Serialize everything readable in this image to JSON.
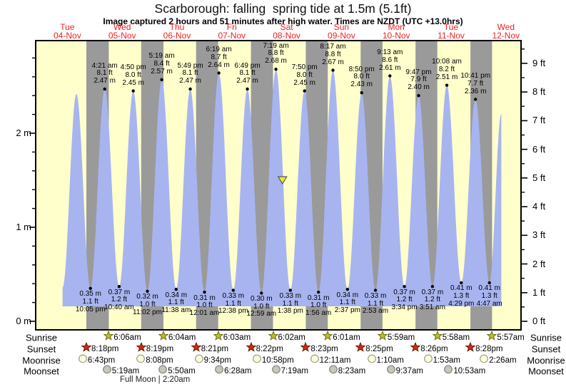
{
  "title": "Scarborough: falling  spring tide at 1.5m (5.1ft)",
  "subtitle": "Image captured 2 hours and 51 minutes after high water. Times are NZDT (UTC +13.0hrs)",
  "days": [
    {
      "dow": "Tue",
      "date": "04-Nov"
    },
    {
      "dow": "Wed",
      "date": "05-Nov"
    },
    {
      "dow": "Thu",
      "date": "06-Nov"
    },
    {
      "dow": "Fri",
      "date": "07-Nov"
    },
    {
      "dow": "Sat",
      "date": "08-Nov"
    },
    {
      "dow": "Sun",
      "date": "09-Nov"
    },
    {
      "dow": "Mon",
      "date": "10-Nov"
    },
    {
      "dow": "Tue",
      "date": "11-Nov"
    },
    {
      "dow": "Wed",
      "date": "12-Nov"
    }
  ],
  "axes": {
    "left_labels": [
      "0 m",
      "1 m",
      "2 m"
    ],
    "right_labels": [
      "0 ft",
      "1 ft",
      "2 ft",
      "3 ft",
      "4 ft",
      "5 ft",
      "6 ft",
      "7 ft",
      "8 ft",
      "9 ft"
    ]
  },
  "chart_data": {
    "type": "area",
    "title": "Scarborough: falling  spring tide at 1.5m (5.1ft)",
    "x_unit": "hours since Tue 04-Nov 00:00 NZDT",
    "y_unit_primary": "m",
    "y_unit_secondary": "ft",
    "ylim_m": [
      0,
      2.98
    ],
    "grid": false,
    "tide_events": [
      {
        "t": 9.9,
        "m": 0.36,
        "kind": "low",
        "annotated": false
      },
      {
        "t": 15.95,
        "m": 2.42,
        "kind": "high",
        "annotated": false
      },
      {
        "t": 22.083,
        "m": 0.35,
        "kind": "low",
        "annotated": true,
        "time_label": "10:05 pm",
        "ft_label": "1.1 ft",
        "m_label": "0.35 m"
      },
      {
        "t": 28.35,
        "m": 2.47,
        "kind": "high",
        "annotated": true,
        "time_label": "4:21 am",
        "ft_label": "8.1 ft",
        "m_label": "2.47 m"
      },
      {
        "t": 34.667,
        "m": 0.37,
        "kind": "low",
        "annotated": true,
        "time_label": "10:40 am",
        "ft_label": "1.2 ft",
        "m_label": "0.37 m"
      },
      {
        "t": 40.833,
        "m": 2.45,
        "kind": "high",
        "annotated": true,
        "time_label": "4:50 pm",
        "ft_label": "8.0 ft",
        "m_label": "2.45 m"
      },
      {
        "t": 47.033,
        "m": 0.32,
        "kind": "low",
        "annotated": true,
        "time_label": "11:02 pm",
        "ft_label": "1.0 ft",
        "m_label": "0.32 m"
      },
      {
        "t": 53.317,
        "m": 2.57,
        "kind": "high",
        "annotated": true,
        "time_label": "5:19 am",
        "ft_label": "8.4 ft",
        "m_label": "2.57 m"
      },
      {
        "t": 59.633,
        "m": 0.34,
        "kind": "low",
        "annotated": true,
        "time_label": "11:38 am",
        "ft_label": "1.1 ft",
        "m_label": "0.34 m"
      },
      {
        "t": 65.817,
        "m": 2.47,
        "kind": "high",
        "annotated": true,
        "time_label": "5:49 pm",
        "ft_label": "8.1 ft",
        "m_label": "2.47 m"
      },
      {
        "t": 72.017,
        "m": 0.31,
        "kind": "low",
        "annotated": true,
        "time_label": "12:01 am",
        "ft_label": "1.0 ft",
        "m_label": "0.31 m"
      },
      {
        "t": 78.317,
        "m": 2.64,
        "kind": "high",
        "annotated": true,
        "time_label": "6:19 am",
        "ft_label": "8.7 ft",
        "m_label": "2.64 m"
      },
      {
        "t": 84.633,
        "m": 0.33,
        "kind": "low",
        "annotated": true,
        "time_label": "12:38 pm",
        "ft_label": "1.1 ft",
        "m_label": "0.33 m"
      },
      {
        "t": 90.817,
        "m": 2.47,
        "kind": "high",
        "annotated": true,
        "time_label": "6:49 pm",
        "ft_label": "8.1 ft",
        "m_label": "2.47 m"
      },
      {
        "t": 96.983,
        "m": 0.3,
        "kind": "low",
        "annotated": true,
        "time_label": "12:59 am",
        "ft_label": "1.0 ft",
        "m_label": "0.30 m"
      },
      {
        "t": 103.317,
        "m": 2.68,
        "kind": "high",
        "annotated": true,
        "time_label": "7:19 am",
        "ft_label": "8.8 ft",
        "m_label": "2.68 m"
      },
      {
        "t": 109.633,
        "m": 0.33,
        "kind": "low",
        "annotated": true,
        "time_label": "1:38 pm",
        "ft_label": "1.1 ft",
        "m_label": "0.33 m"
      },
      {
        "t": 115.833,
        "m": 2.45,
        "kind": "high",
        "annotated": true,
        "time_label": "7:50 pm",
        "ft_label": "8.0 ft",
        "m_label": "2.45 m"
      },
      {
        "t": 121.933,
        "m": 0.31,
        "kind": "low",
        "annotated": true,
        "time_label": "1:56 am",
        "ft_label": "1.0 ft",
        "m_label": "0.31 m"
      },
      {
        "t": 128.283,
        "m": 2.67,
        "kind": "high",
        "annotated": true,
        "time_label": "8:17 am",
        "ft_label": "8.8 ft",
        "m_label": "2.67 m"
      },
      {
        "t": 134.617,
        "m": 0.34,
        "kind": "low",
        "annotated": true,
        "time_label": "2:37 pm",
        "ft_label": "1.1 ft",
        "m_label": "0.34 m"
      },
      {
        "t": 140.833,
        "m": 2.43,
        "kind": "high",
        "annotated": true,
        "time_label": "8:50 pm",
        "ft_label": "8.0 ft",
        "m_label": "2.43 m"
      },
      {
        "t": 146.883,
        "m": 0.33,
        "kind": "low",
        "annotated": true,
        "time_label": "2:53 am",
        "ft_label": "1.1 ft",
        "m_label": "0.33 m"
      },
      {
        "t": 153.217,
        "m": 2.61,
        "kind": "high",
        "annotated": true,
        "time_label": "9:13 am",
        "ft_label": "8.6 ft",
        "m_label": "2.61 m"
      },
      {
        "t": 159.567,
        "m": 0.37,
        "kind": "low",
        "annotated": true,
        "time_label": "3:34 pm",
        "ft_label": "1.2 ft",
        "m_label": "0.37 m"
      },
      {
        "t": 165.783,
        "m": 2.4,
        "kind": "high",
        "annotated": true,
        "time_label": "9:47 pm",
        "ft_label": "7.9 ft",
        "m_label": "2.40 m"
      },
      {
        "t": 171.85,
        "m": 0.37,
        "kind": "low",
        "annotated": true,
        "time_label": "3:51 am",
        "ft_label": "1.2 ft",
        "m_label": "0.37 m"
      },
      {
        "t": 178.133,
        "m": 2.51,
        "kind": "high",
        "annotated": true,
        "time_label": "10:08 am",
        "ft_label": "8.2 ft",
        "m_label": "2.51 m"
      },
      {
        "t": 184.483,
        "m": 0.41,
        "kind": "low",
        "annotated": true,
        "time_label": "4:29 pm",
        "ft_label": "1.3 ft",
        "m_label": "0.41 m"
      },
      {
        "t": 190.683,
        "m": 2.36,
        "kind": "high",
        "annotated": true,
        "time_label": "10:41 pm",
        "ft_label": "7.7 ft",
        "m_label": "2.36 m"
      },
      {
        "t": 196.783,
        "m": 0.41,
        "kind": "low",
        "annotated": true,
        "time_label": "4:47 am",
        "ft_label": "1.3 ft",
        "m_label": "0.41 m"
      },
      {
        "t": 202.0,
        "m": 2.21,
        "kind": "high",
        "annotated": false
      }
    ],
    "capture_marker": {
      "t": 106.17,
      "level_m": 1.5
    }
  },
  "sun_moon": {
    "rows": [
      {
        "id": "sunrise",
        "label": "Sunrise",
        "icon": "sunrise-star",
        "events": [
          {
            "day": 1,
            "time": "6:06am"
          },
          {
            "day": 2,
            "time": "6:04am"
          },
          {
            "day": 3,
            "time": "6:03am"
          },
          {
            "day": 4,
            "time": "6:02am"
          },
          {
            "day": 5,
            "time": "6:01am"
          },
          {
            "day": 6,
            "time": "5:59am"
          },
          {
            "day": 7,
            "time": "5:58am"
          },
          {
            "day": 8,
            "time": "5:57am"
          }
        ]
      },
      {
        "id": "sunset",
        "label": "Sunset",
        "icon": "sunset-star",
        "events": [
          {
            "day": 0,
            "time": "8:18pm"
          },
          {
            "day": 1,
            "time": "8:19pm"
          },
          {
            "day": 2,
            "time": "8:21pm"
          },
          {
            "day": 3,
            "time": "8:22pm"
          },
          {
            "day": 4,
            "time": "8:23pm"
          },
          {
            "day": 5,
            "time": "8:25pm"
          },
          {
            "day": 6,
            "time": "8:26pm"
          },
          {
            "day": 7,
            "time": "8:28pm"
          }
        ]
      },
      {
        "id": "moonrise",
        "label": "Moonrise",
        "icon": "moonrise-circle",
        "events": [
          {
            "day": 0,
            "time": "6:43pm"
          },
          {
            "day": 1,
            "time": "8:08pm"
          },
          {
            "day": 2,
            "time": "9:34pm"
          },
          {
            "day": 3,
            "time": "10:58pm"
          },
          {
            "day": 5,
            "time": "12:11am"
          },
          {
            "day": 6,
            "time": "1:10am"
          },
          {
            "day": 7,
            "time": "1:53am"
          },
          {
            "day": 8,
            "time": "2:26am"
          }
        ]
      },
      {
        "id": "moonset",
        "label": "Moonset",
        "icon": "moonset-circle",
        "events": [
          {
            "day": 1,
            "time": "5:19am"
          },
          {
            "day": 2,
            "time": "5:50am"
          },
          {
            "day": 3,
            "time": "6:28am"
          },
          {
            "day": 4,
            "time": "7:19am"
          },
          {
            "day": 5,
            "time": "8:23am"
          },
          {
            "day": 6,
            "time": "9:37am"
          },
          {
            "day": 7,
            "time": "10:53am"
          }
        ]
      }
    ],
    "full_moon": {
      "label": "Full Moon",
      "separator": "|",
      "time": "2:20am",
      "day": 2
    }
  },
  "colors": {
    "day_band": "#ffffcc",
    "night_band": "#9a9a9a",
    "tide_fill": "#a8b4f0",
    "day_label_red": "#ee2222",
    "frame": "#000000",
    "dot": "#000000",
    "marker_fill": "#ece92f",
    "marker_stroke": "#555555",
    "sunrise_fill": "#bcbc30",
    "sunrise_stroke": "#6e6e10",
    "sunset_fill": "#cd2c10",
    "sunset_stroke": "#6b1505",
    "moonrise_fill": "#ffffd9",
    "moonrise_stroke": "#9a9a85",
    "moonset_fill": "#c6c6bb",
    "moonset_stroke": "#82827a"
  }
}
